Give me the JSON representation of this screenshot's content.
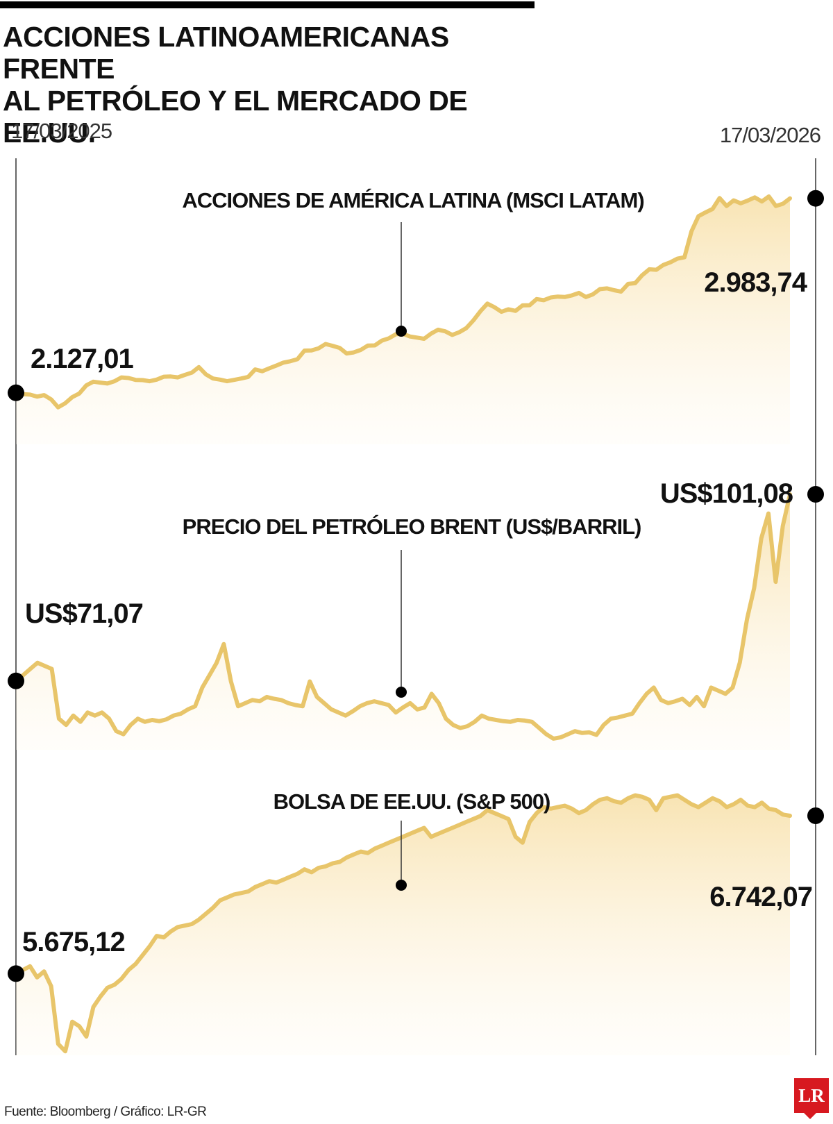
{
  "title_line1": "ACCIONES LATINOAMERICANAS FRENTE",
  "title_line2": "AL PETRÓLEO Y EL MERCADO DE EE.UU.",
  "source": "Fuente: Bloomberg / Gráfico: LR-GR",
  "logo": "LR",
  "colors": {
    "line": "#e8c56a",
    "area_top": "#f7dfa6",
    "area_bottom": "#fffaf0",
    "marker": "#000000"
  },
  "chart_data": [
    {
      "type": "area",
      "title": "ACCIONES DE AMÉRICA LATINA (MSCI LATAM)",
      "x_start": "17/03/2025",
      "x_end": "17/03/2026",
      "start_label": "2.127,01",
      "end_label": "2.983,74",
      "start_value": 2127.01,
      "end_value": 2983.74,
      "ylim": [
        1900,
        3200
      ],
      "values": [
        2127,
        2121,
        2119,
        2110,
        2117,
        2098,
        2063,
        2081,
        2108,
        2124,
        2160,
        2176,
        2172,
        2168,
        2178,
        2195,
        2192,
        2184,
        2183,
        2178,
        2185,
        2198,
        2199,
        2195,
        2206,
        2216,
        2240,
        2208,
        2190,
        2185,
        2178,
        2184,
        2190,
        2197,
        2230,
        2222,
        2235,
        2247,
        2260,
        2266,
        2275,
        2313,
        2314,
        2323,
        2342,
        2334,
        2325,
        2300,
        2305,
        2316,
        2335,
        2336,
        2357,
        2367,
        2385,
        2387,
        2375,
        2370,
        2365,
        2388,
        2405,
        2398,
        2382,
        2394,
        2412,
        2446,
        2486,
        2520,
        2504,
        2484,
        2495,
        2488,
        2512,
        2513,
        2540,
        2535,
        2547,
        2551,
        2549,
        2556,
        2567,
        2549,
        2561,
        2584,
        2587,
        2579,
        2573,
        2607,
        2610,
        2645,
        2671,
        2669,
        2690,
        2702,
        2718,
        2724,
        2838,
        2905,
        2922,
        2937,
        2985,
        2950,
        2975,
        2962,
        2974,
        2988,
        2970,
        2992,
        2950,
        2960,
        2983.74
      ]
    },
    {
      "type": "area",
      "title": "PRECIO DEL PETRÓLEO BRENT (US$/BARRIL)",
      "x_start": "17/03/2025",
      "x_end": "17/03/2026",
      "start_label": "US$71,07",
      "end_label": "US$101,08",
      "start_value": 71.07,
      "end_value": 101.08,
      "ylim": [
        60,
        108
      ],
      "values": [
        71.07,
        72,
        73,
        74,
        73.5,
        73,
        65,
        64,
        65.5,
        64.5,
        66,
        65.5,
        66,
        65,
        63,
        62.5,
        64,
        65,
        64.5,
        64.8,
        64.6,
        64.9,
        65.5,
        65.8,
        66.5,
        67,
        70,
        72,
        74,
        77,
        71,
        67,
        67.5,
        68,
        67.8,
        68.5,
        68.2,
        68,
        67.5,
        67.2,
        67,
        71,
        68.5,
        67.5,
        66.5,
        66,
        65.5,
        66.2,
        67,
        67.5,
        67.8,
        67.5,
        67.2,
        66,
        66.8,
        67.5,
        66.5,
        66.8,
        69,
        67.5,
        65,
        64,
        63.5,
        63.8,
        64.5,
        65.5,
        65,
        64.8,
        64.6,
        64.5,
        64.8,
        64.7,
        64.5,
        63.5,
        62.5,
        61.8,
        62,
        62.5,
        63,
        62.7,
        62.8,
        62.4,
        64,
        65,
        65.2,
        65.5,
        65.8,
        67.5,
        69,
        70,
        68,
        67.5,
        67.8,
        68.2,
        67.2,
        68.5,
        67,
        70,
        69.5,
        69,
        70,
        74,
        81,
        86,
        94,
        98,
        87,
        96,
        101.08
      ]
    },
    {
      "type": "area",
      "title": "BOLSA DE EE.UU. (S&P 500)",
      "x_start": "17/03/2025",
      "x_end": "17/03/2026",
      "start_label": "5.675,12",
      "end_label": "6.742,07",
      "start_value": 5675.12,
      "end_value": 6742.07,
      "ylim": [
        5100,
        7000
      ],
      "values": [
        5675,
        5700,
        5725,
        5650,
        5690,
        5590,
        5200,
        5150,
        5350,
        5320,
        5250,
        5450,
        5520,
        5580,
        5600,
        5640,
        5700,
        5740,
        5800,
        5860,
        5930,
        5920,
        5960,
        5990,
        6000,
        6010,
        6040,
        6080,
        6120,
        6170,
        6190,
        6210,
        6220,
        6230,
        6260,
        6280,
        6300,
        6290,
        6310,
        6330,
        6350,
        6380,
        6360,
        6390,
        6400,
        6420,
        6430,
        6460,
        6480,
        6500,
        6490,
        6520,
        6540,
        6560,
        6580,
        6600,
        6620,
        6640,
        6660,
        6600,
        6620,
        6640,
        6660,
        6680,
        6700,
        6720,
        6740,
        6780,
        6760,
        6740,
        6720,
        6600,
        6560,
        6700,
        6760,
        6800,
        6790,
        6800,
        6810,
        6790,
        6760,
        6780,
        6820,
        6850,
        6860,
        6840,
        6830,
        6860,
        6880,
        6870,
        6850,
        6780,
        6860,
        6870,
        6880,
        6850,
        6820,
        6800,
        6830,
        6860,
        6840,
        6800,
        6820,
        6850,
        6810,
        6800,
        6830,
        6790,
        6780,
        6750,
        6742.07
      ]
    }
  ]
}
